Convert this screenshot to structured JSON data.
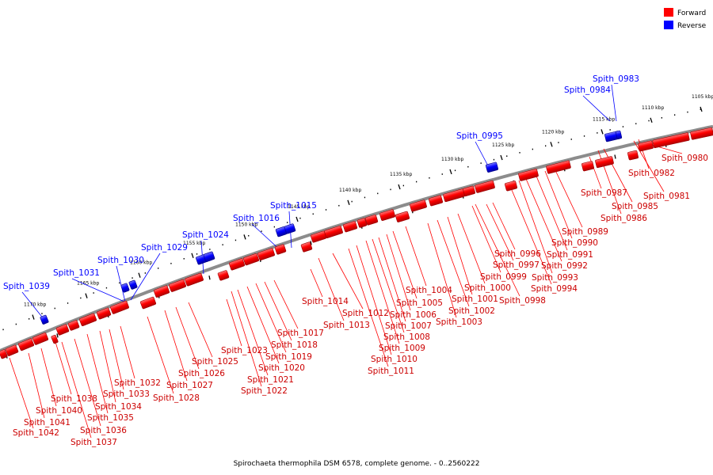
{
  "legend": {
    "forward": {
      "label": "Forward",
      "color": "#ff0000"
    },
    "reverse": {
      "label": "Reverse",
      "color": "#0000ff"
    }
  },
  "caption": "Spirochaeta thermophila DSM 6578, complete genome. - 0..2560222",
  "ruler_ticks": [
    "1105 kbp",
    "1110 kbp",
    "1115 kbp",
    "1120 kbp",
    "1125 kbp",
    "1130 kbp",
    "1135 kbp",
    "1140 kbp",
    "1145 kbp",
    "1150 kbp",
    "1155 kbp",
    "1160 kbp",
    "1165 kbp",
    "1170 kbp"
  ],
  "reverse_genes": [
    "Spith_0983",
    "Spith_0984",
    "Spith_0995",
    "Spith_1015",
    "Spith_1016",
    "Spith_1024",
    "Spith_1029",
    "Spith_1030",
    "Spith_1031",
    "Spith_1039"
  ],
  "forward_genes": [
    "Spith_0980",
    "Spith_0981",
    "Spith_0982",
    "Spith_0985",
    "Spith_0986",
    "Spith_0987",
    "Spith_0989",
    "Spith_0990",
    "Spith_0991",
    "Spith_0992",
    "Spith_0993",
    "Spith_0994",
    "Spith_0996",
    "Spith_0997",
    "Spith_0998",
    "Spith_0999",
    "Spith_1000",
    "Spith_1001",
    "Spith_1002",
    "Spith_1003",
    "Spith_1004",
    "Spith_1005",
    "Spith_1006",
    "Spith_1007",
    "Spith_1008",
    "Spith_1009",
    "Spith_1010",
    "Spith_1011",
    "Spith_1012",
    "Spith_1013",
    "Spith_1014",
    "Spith_1017",
    "Spith_1018",
    "Spith_1019",
    "Spith_1020",
    "Spith_1021",
    "Spith_1022",
    "Spith_1023",
    "Spith_1025",
    "Spith_1026",
    "Spith_1027",
    "Spith_1028",
    "Spith_1032",
    "Spith_1033",
    "Spith_1034",
    "Spith_1035",
    "Spith_1036",
    "Spith_1037",
    "Spith_1038",
    "Spith_1040",
    "Spith_1041",
    "Spith_1042"
  ]
}
